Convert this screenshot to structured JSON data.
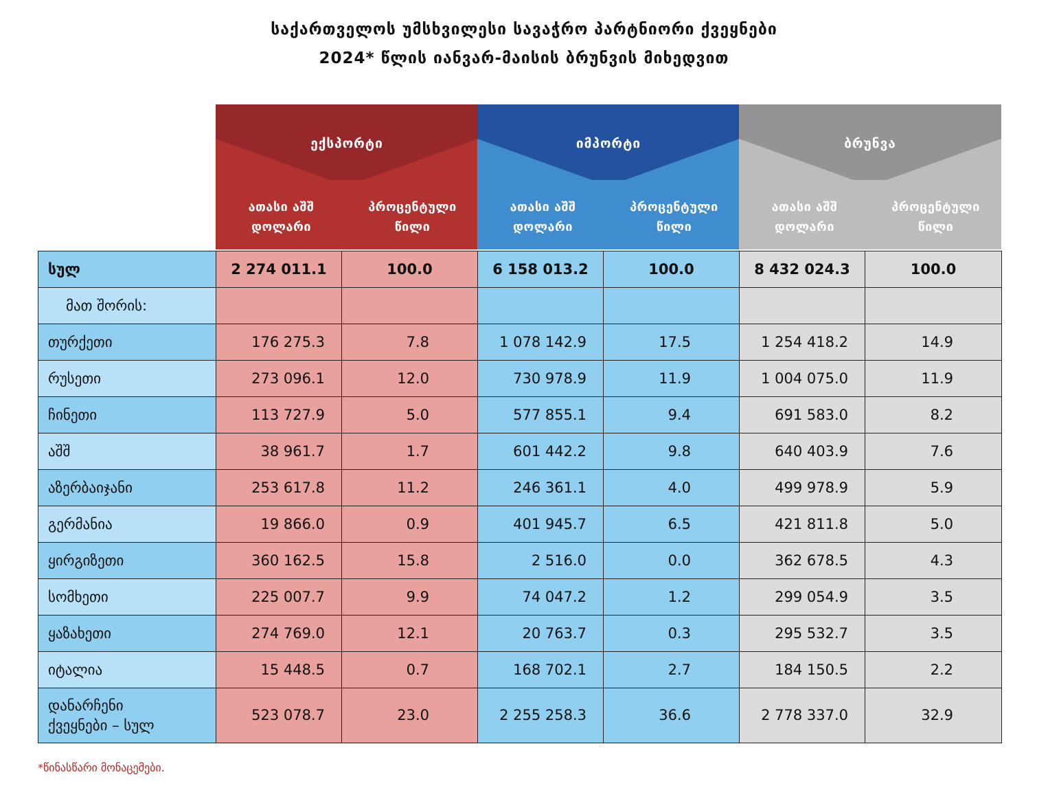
{
  "title": {
    "line1": "საქართველოს უმსხვილესი სავაჭრო პარტნიორი ქვეყნები",
    "line2": "2024* წლის იანვარ-მაისის ბრუნვის მიხედვით"
  },
  "colors": {
    "export_dark": "#972829",
    "export_light": "#b23230",
    "import_dark": "#2352a0",
    "import_light": "#3f8dcf",
    "turnover_dark": "#949497",
    "turnover_light": "#bcbcbe"
  },
  "headers": {
    "export": "ექსპორტი",
    "import": "იმპორტი",
    "turnover": "ბრუნვა",
    "sub_value_line1": "ათასი აშშ",
    "sub_value_line2": "დოლარი",
    "sub_pct_line1": "პროცენტული",
    "sub_pct_line2": "წილი"
  },
  "total": {
    "label": "სულ",
    "export_value": "2 274 011.1",
    "export_pct": "100.0",
    "import_value": "6 158 013.2",
    "import_pct": "100.0",
    "turnover_value": "8 432 024.3",
    "turnover_pct": "100.0"
  },
  "subtitle": "მათ შორის:",
  "rows": [
    {
      "country": "თურქეთი",
      "export_value": "176 275.3",
      "export_pct": "7.8",
      "import_value": "1 078 142.9",
      "import_pct": "17.5",
      "turnover_value": "1 254 418.2",
      "turnover_pct": "14.9"
    },
    {
      "country": "რუსეთი",
      "export_value": "273 096.1",
      "export_pct": "12.0",
      "import_value": "730 978.9",
      "import_pct": "11.9",
      "turnover_value": "1 004 075.0",
      "turnover_pct": "11.9"
    },
    {
      "country": "ჩინეთი",
      "export_value": "113 727.9",
      "export_pct": "5.0",
      "import_value": "577 855.1",
      "import_pct": "9.4",
      "turnover_value": "691 583.0",
      "turnover_pct": "8.2"
    },
    {
      "country": "აშშ",
      "export_value": "38 961.7",
      "export_pct": "1.7",
      "import_value": "601 442.2",
      "import_pct": "9.8",
      "turnover_value": "640 403.9",
      "turnover_pct": "7.6"
    },
    {
      "country": "აზერბაიჯანი",
      "export_value": "253 617.8",
      "export_pct": "11.2",
      "import_value": "246 361.1",
      "import_pct": "4.0",
      "turnover_value": "499 978.9",
      "turnover_pct": "5.9"
    },
    {
      "country": "გერმანია",
      "export_value": "19 866.0",
      "export_pct": "0.9",
      "import_value": "401 945.7",
      "import_pct": "6.5",
      "turnover_value": "421 811.8",
      "turnover_pct": "5.0"
    },
    {
      "country": "ყირგიზეთი",
      "export_value": "360 162.5",
      "export_pct": "15.8",
      "import_value": "2 516.0",
      "import_pct": "0.0",
      "turnover_value": "362 678.5",
      "turnover_pct": "4.3"
    },
    {
      "country": "სომხეთი",
      "export_value": "225 007.7",
      "export_pct": "9.9",
      "import_value": "74 047.2",
      "import_pct": "1.2",
      "turnover_value": "299 054.9",
      "turnover_pct": "3.5"
    },
    {
      "country": "ყაზახეთი",
      "export_value": "274 769.0",
      "export_pct": "12.1",
      "import_value": "20 763.7",
      "import_pct": "0.3",
      "turnover_value": "295 532.7",
      "turnover_pct": "3.5"
    },
    {
      "country": "იტალია",
      "export_value": "15 448.5",
      "export_pct": "0.7",
      "import_value": "168 702.1",
      "import_pct": "2.7",
      "turnover_value": "184 150.5",
      "turnover_pct": "2.2"
    }
  ],
  "others": {
    "line1": "დანარჩენი",
    "line2": "ქვეყნები – სულ",
    "export_value": "523 078.7",
    "export_pct": "23.0",
    "import_value": "2 255 258.3",
    "import_pct": "36.6",
    "turnover_value": "2 778 337.0",
    "turnover_pct": "32.9"
  },
  "footnote": "*წინასწარი მონაცემები."
}
